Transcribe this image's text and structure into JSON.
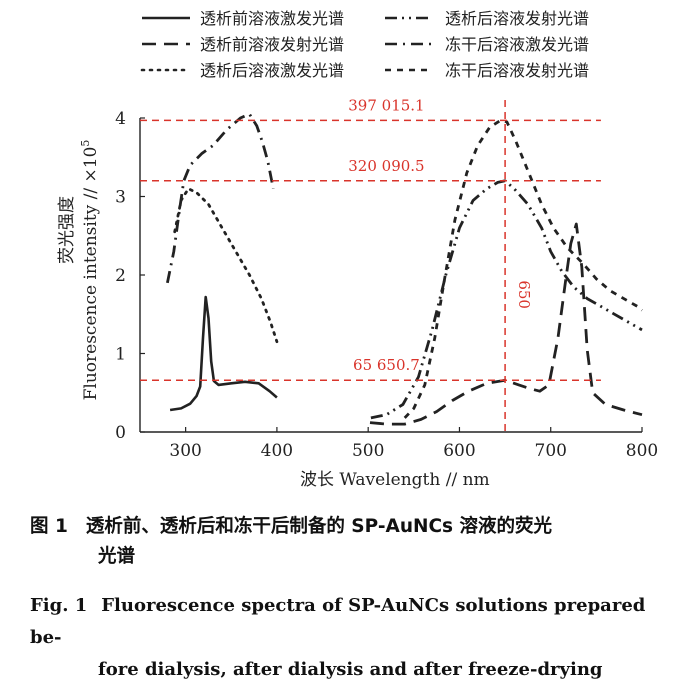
{
  "chart_data": {
    "type": "line",
    "title": "",
    "xlabel": "波长 Wavelength // nm",
    "ylabel_cn": "荧光强度",
    "ylabel_en": "Fluorescence intensity // ×10",
    "ylabel_exp": "5",
    "xlim": [
      250,
      800
    ],
    "ylim": [
      0,
      4
    ],
    "xticks": [
      300,
      400,
      500,
      600,
      700,
      800
    ],
    "yticks": [
      0,
      1,
      2,
      3,
      4
    ],
    "grid": false,
    "legend_position": "top",
    "series": [
      {
        "name": "透析前溶液激发光谱",
        "style": "solid",
        "points": [
          [
            283,
            0.28
          ],
          [
            295,
            0.3
          ],
          [
            305,
            0.36
          ],
          [
            312,
            0.46
          ],
          [
            316,
            0.58
          ],
          [
            319,
            1.2
          ],
          [
            322,
            1.72
          ],
          [
            325,
            1.45
          ],
          [
            328,
            0.9
          ],
          [
            331,
            0.65
          ],
          [
            336,
            0.6
          ],
          [
            350,
            0.62
          ],
          [
            365,
            0.64
          ],
          [
            380,
            0.62
          ],
          [
            392,
            0.52
          ],
          [
            400,
            0.44
          ]
        ]
      },
      {
        "name": "透析前溶液发射光谱",
        "style": "dashed",
        "points": [
          [
            502,
            0.12
          ],
          [
            520,
            0.1
          ],
          [
            540,
            0.1
          ],
          [
            558,
            0.16
          ],
          [
            575,
            0.26
          ],
          [
            592,
            0.4
          ],
          [
            610,
            0.52
          ],
          [
            630,
            0.62
          ],
          [
            650,
            0.66
          ],
          [
            665,
            0.6
          ],
          [
            678,
            0.55
          ],
          [
            688,
            0.52
          ],
          [
            698,
            0.6
          ],
          [
            708,
            1.2
          ],
          [
            716,
            1.9
          ],
          [
            722,
            2.4
          ],
          [
            728,
            2.65
          ],
          [
            734,
            2.1
          ],
          [
            740,
            1.05
          ],
          [
            746,
            0.5
          ],
          [
            760,
            0.35
          ],
          [
            780,
            0.28
          ],
          [
            800,
            0.22
          ]
        ]
      },
      {
        "name": "透析后溶液激发光谱",
        "style": "dotted",
        "points": [
          [
            288,
            2.55
          ],
          [
            295,
            2.95
          ],
          [
            303,
            3.1
          ],
          [
            312,
            3.05
          ],
          [
            325,
            2.9
          ],
          [
            340,
            2.6
          ],
          [
            355,
            2.3
          ],
          [
            370,
            2.0
          ],
          [
            383,
            1.7
          ],
          [
            393,
            1.4
          ],
          [
            400,
            1.15
          ]
        ]
      },
      {
        "name": "透析后溶液发射光谱",
        "style": "dash-dot-dot",
        "points": [
          [
            503,
            0.18
          ],
          [
            520,
            0.22
          ],
          [
            538,
            0.35
          ],
          [
            555,
            0.7
          ],
          [
            570,
            1.3
          ],
          [
            585,
            2.0
          ],
          [
            600,
            2.6
          ],
          [
            615,
            2.95
          ],
          [
            630,
            3.1
          ],
          [
            642,
            3.18
          ],
          [
            650,
            3.2
          ],
          [
            660,
            3.1
          ],
          [
            675,
            2.9
          ],
          [
            690,
            2.6
          ],
          [
            700,
            2.3
          ],
          [
            712,
            2.05
          ],
          [
            725,
            1.85
          ],
          [
            740,
            1.7
          ],
          [
            755,
            1.6
          ],
          [
            770,
            1.5
          ],
          [
            785,
            1.4
          ],
          [
            800,
            1.3
          ]
        ]
      },
      {
        "name": "冻干后溶液激发光谱",
        "style": "dash-dot",
        "points": [
          [
            280,
            1.9
          ],
          [
            287,
            2.3
          ],
          [
            293,
            2.8
          ],
          [
            298,
            3.2
          ],
          [
            305,
            3.4
          ],
          [
            318,
            3.55
          ],
          [
            330,
            3.65
          ],
          [
            345,
            3.85
          ],
          [
            360,
            4.0
          ],
          [
            370,
            4.05
          ],
          [
            378,
            3.9
          ],
          [
            384,
            3.7
          ],
          [
            390,
            3.45
          ],
          [
            396,
            3.1
          ]
        ]
      },
      {
        "name": "冻干后溶液发射光谱",
        "style": "short-dash",
        "points": [
          [
            540,
            0.18
          ],
          [
            550,
            0.3
          ],
          [
            562,
            0.6
          ],
          [
            573,
            1.2
          ],
          [
            583,
            1.9
          ],
          [
            595,
            2.7
          ],
          [
            608,
            3.3
          ],
          [
            620,
            3.65
          ],
          [
            633,
            3.88
          ],
          [
            645,
            3.97
          ],
          [
            652,
            3.95
          ],
          [
            662,
            3.7
          ],
          [
            676,
            3.3
          ],
          [
            690,
            2.9
          ],
          [
            703,
            2.6
          ],
          [
            718,
            2.35
          ],
          [
            735,
            2.15
          ],
          [
            750,
            1.95
          ],
          [
            765,
            1.8
          ],
          [
            780,
            1.7
          ],
          [
            795,
            1.6
          ],
          [
            800,
            1.55
          ]
        ]
      }
    ],
    "annotations": {
      "hline_1": {
        "label": "397 015.1",
        "y": 3.97
      },
      "hline_2": {
        "label": "320 090.5",
        "y": 3.2
      },
      "hline_3": {
        "label": "65 650.7",
        "y": 0.66
      },
      "vline": {
        "label": "650",
        "x": 650
      }
    }
  },
  "caption_cn": {
    "label": "图 1",
    "line1": "透析前、透析后和冻干后制备的 SP-AuNCs 溶液的荧光",
    "line2": "光谱"
  },
  "caption_en": {
    "label": "Fig. 1",
    "line1": "Fluorescence spectra of SP-AuNCs solutions prepared be-",
    "line2": "fore dialysis, after dialysis and after freeze-drying"
  },
  "colors": {
    "series": "#222222",
    "annotation": "#d9342b",
    "axis": "#222222"
  }
}
